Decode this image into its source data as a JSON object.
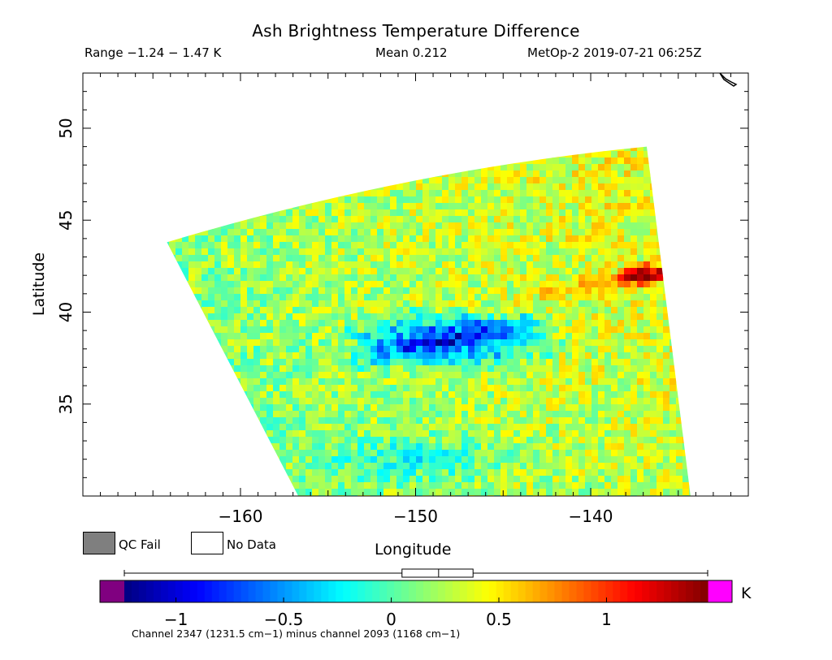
{
  "header": {
    "title": "Ash Brightness Temperature Difference",
    "range": "Range −1.24 − 1.47 K",
    "mean": "Mean 0.212",
    "satellite_time": "MetOp-2 2019-07-21 06:25Z"
  },
  "legend": {
    "qc_fail": "QC Fail",
    "no_data": "No Data",
    "qc_fail_color": "#7f7f7f",
    "no_data_color": "#ffffff"
  },
  "colorbar": {
    "unit": "K",
    "caption": "Channel 2347 (1231.5 cm−1) minus channel 2093 (1168 cm−1)",
    "min": -1.24,
    "max": 1.47,
    "ticks": [
      -1,
      -0.5,
      0,
      0.5,
      1
    ],
    "tick_labels": [
      "−1",
      "−0.5",
      "0",
      "0.5",
      "1"
    ],
    "under_color": "#800080",
    "over_color": "#ff00ff",
    "boxplot": {
      "whisker_low": -1.24,
      "q1": 0.05,
      "median": 0.22,
      "q3": 0.38,
      "whisker_high": 1.47
    }
  },
  "chart_data": {
    "type": "heatmap",
    "title": "Ash Brightness Temperature Difference",
    "xlabel": "Longitude",
    "ylabel": "Latitude",
    "xlim": [
      -169,
      -131
    ],
    "ylim": [
      30,
      53
    ],
    "x_ticks": [
      -160,
      -150,
      -140
    ],
    "x_tick_labels": [
      "−160",
      "−150",
      "−140"
    ],
    "y_ticks": [
      35,
      40,
      45,
      50
    ],
    "y_tick_labels": [
      "35",
      "40",
      "45",
      "50"
    ],
    "colormap": "jet",
    "units": "K",
    "swath_corners": {
      "top_left": [
        -164.2,
        43.8
      ],
      "top_right": [
        -136.8,
        49.0
      ],
      "bottom_left": [
        -156.7,
        30.0
      ],
      "bottom_right": [
        -134.3,
        30.0
      ]
    },
    "features": [
      {
        "name": "negative band",
        "value": -0.9,
        "lon": -148,
        "lat": 38.5
      },
      {
        "name": "positive band",
        "value": 1.3,
        "lon": -137,
        "lat": 42
      }
    ]
  }
}
